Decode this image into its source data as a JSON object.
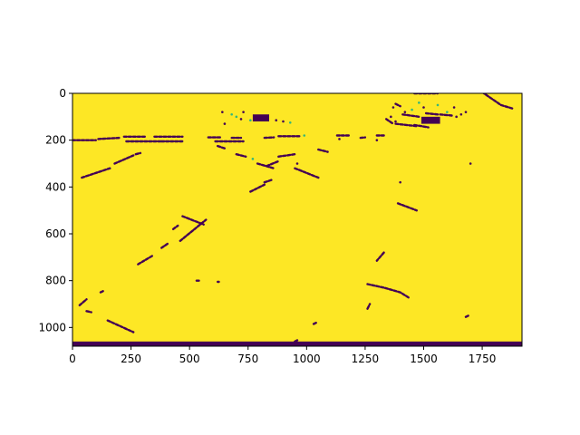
{
  "chart_data": {
    "type": "heatmap",
    "title": "",
    "xlabel": "",
    "ylabel": "",
    "xlim": [
      0,
      1920
    ],
    "ylim": [
      1080,
      0
    ],
    "x_ticks": [
      0,
      250,
      500,
      750,
      1000,
      1250,
      1500,
      1750
    ],
    "y_ticks": [
      0,
      200,
      400,
      600,
      800,
      1000
    ],
    "colormap": "viridis",
    "background_color": "#fde725",
    "mark_color": "#440154",
    "accent_color": "#35b779",
    "grid": false,
    "legend": "none",
    "features": {
      "strokes": [
        [
          [
            0,
            200
          ],
          [
            100,
            200
          ]
        ],
        [
          [
            110,
            195
          ],
          [
            200,
            190
          ]
        ],
        [
          [
            220,
            185
          ],
          [
            310,
            185
          ]
        ],
        [
          [
            230,
            205
          ],
          [
            380,
            205
          ]
        ],
        [
          [
            350,
            185
          ],
          [
            470,
            185
          ]
        ],
        [
          [
            380,
            205
          ],
          [
            470,
            205
          ]
        ],
        [
          [
            580,
            188
          ],
          [
            630,
            188
          ]
        ],
        [
          [
            610,
            205
          ],
          [
            730,
            205
          ]
        ],
        [
          [
            680,
            190
          ],
          [
            720,
            190
          ]
        ],
        [
          [
            820,
            190
          ],
          [
            860,
            188
          ]
        ],
        [
          [
            880,
            183
          ],
          [
            970,
            183
          ]
        ],
        [
          [
            1130,
            180
          ],
          [
            1180,
            180
          ]
        ],
        [
          [
            1230,
            190
          ],
          [
            1250,
            188
          ]
        ],
        [
          [
            1300,
            180
          ],
          [
            1330,
            180
          ]
        ],
        [
          [
            40,
            360
          ],
          [
            160,
            320
          ]
        ],
        [
          [
            180,
            300
          ],
          [
            260,
            265
          ]
        ],
        [
          [
            270,
            260
          ],
          [
            290,
            255
          ]
        ],
        [
          [
            1750,
            -5
          ],
          [
            1830,
            50
          ],
          [
            1880,
            65
          ]
        ],
        [
          [
            1460,
            0
          ],
          [
            1560,
            0
          ]
        ],
        [
          [
            1380,
            45
          ],
          [
            1400,
            55
          ]
        ],
        [
          [
            1410,
            90
          ],
          [
            1480,
            100
          ]
        ],
        [
          [
            1460,
            135
          ],
          [
            1520,
            145
          ]
        ],
        [
          [
            1510,
            85
          ],
          [
            1560,
            90
          ]
        ],
        [
          [
            1570,
            90
          ],
          [
            1620,
            95
          ]
        ],
        [
          [
            1340,
            110
          ],
          [
            1370,
            130
          ]
        ],
        [
          [
            1380,
            130
          ],
          [
            1470,
            140
          ]
        ],
        [
          [
            950,
            320
          ],
          [
            1050,
            360
          ]
        ],
        [
          [
            830,
            310
          ],
          [
            880,
            290
          ]
        ],
        [
          [
            880,
            270
          ],
          [
            950,
            260
          ]
        ],
        [
          [
            1050,
            240
          ],
          [
            1090,
            250
          ]
        ],
        [
          [
            760,
            420
          ],
          [
            820,
            390
          ]
        ],
        [
          [
            820,
            380
          ],
          [
            850,
            370
          ]
        ],
        [
          [
            790,
            300
          ],
          [
            860,
            320
          ]
        ],
        [
          [
            700,
            260
          ],
          [
            740,
            270
          ]
        ],
        [
          [
            620,
            225
          ],
          [
            650,
            235
          ]
        ],
        [
          [
            460,
            630
          ],
          [
            570,
            540
          ]
        ],
        [
          [
            430,
            580
          ],
          [
            450,
            565
          ]
        ],
        [
          [
            470,
            525
          ],
          [
            560,
            560
          ]
        ],
        [
          [
            280,
            730
          ],
          [
            340,
            695
          ]
        ],
        [
          [
            380,
            660
          ],
          [
            410,
            640
          ]
        ],
        [
          [
            1260,
            815
          ],
          [
            1330,
            830
          ],
          [
            1400,
            850
          ],
          [
            1440,
            875
          ]
        ],
        [
          [
            1330,
            680
          ],
          [
            1300,
            715
          ]
        ],
        [
          [
            1390,
            470
          ],
          [
            1470,
            500
          ]
        ],
        [
          [
            1260,
            920
          ],
          [
            1270,
            900
          ]
        ],
        [
          [
            150,
            970
          ],
          [
            260,
            1020
          ]
        ],
        [
          [
            30,
            905
          ],
          [
            60,
            880
          ]
        ],
        [
          [
            60,
            930
          ],
          [
            80,
            935
          ]
        ],
        [
          [
            120,
            850
          ],
          [
            130,
            845
          ]
        ],
        [
          [
            950,
            1060
          ],
          [
            960,
            1055
          ]
        ],
        [
          [
            1030,
            985
          ],
          [
            1040,
            980
          ]
        ],
        [
          [
            530,
            800
          ],
          [
            540,
            800
          ]
        ],
        [
          [
            620,
            805
          ],
          [
            625,
            805
          ]
        ],
        [
          [
            1680,
            955
          ],
          [
            1690,
            950
          ]
        ]
      ],
      "blocks": [
        {
          "x": [
            770,
            840
          ],
          "y": [
            90,
            120
          ]
        },
        {
          "x": [
            1490,
            1570
          ],
          "y": [
            100,
            130
          ]
        },
        {
          "x": [
            0,
            1920
          ],
          "y": [
            1060,
            1080
          ]
        }
      ],
      "small_marks": [
        [
          700,
          100
        ],
        [
          720,
          110
        ],
        [
          640,
          80
        ],
        [
          680,
          90
        ],
        [
          650,
          130
        ],
        [
          730,
          80
        ],
        [
          760,
          115
        ],
        [
          870,
          115
        ],
        [
          900,
          120
        ],
        [
          930,
          125
        ],
        [
          1360,
          100
        ],
        [
          1420,
          80
        ],
        [
          1450,
          70
        ],
        [
          1500,
          60
        ],
        [
          1370,
          60
        ],
        [
          1600,
          80
        ],
        [
          1640,
          100
        ],
        [
          1660,
          90
        ],
        [
          1560,
          50
        ],
        [
          1630,
          60
        ],
        [
          1680,
          80
        ],
        [
          990,
          180
        ],
        [
          1140,
          195
        ],
        [
          1300,
          200
        ],
        [
          770,
          280
        ],
        [
          960,
          300
        ],
        [
          1380,
          120
        ],
        [
          1480,
          40
        ],
        [
          1700,
          300
        ],
        [
          1400,
          380
        ]
      ]
    }
  }
}
